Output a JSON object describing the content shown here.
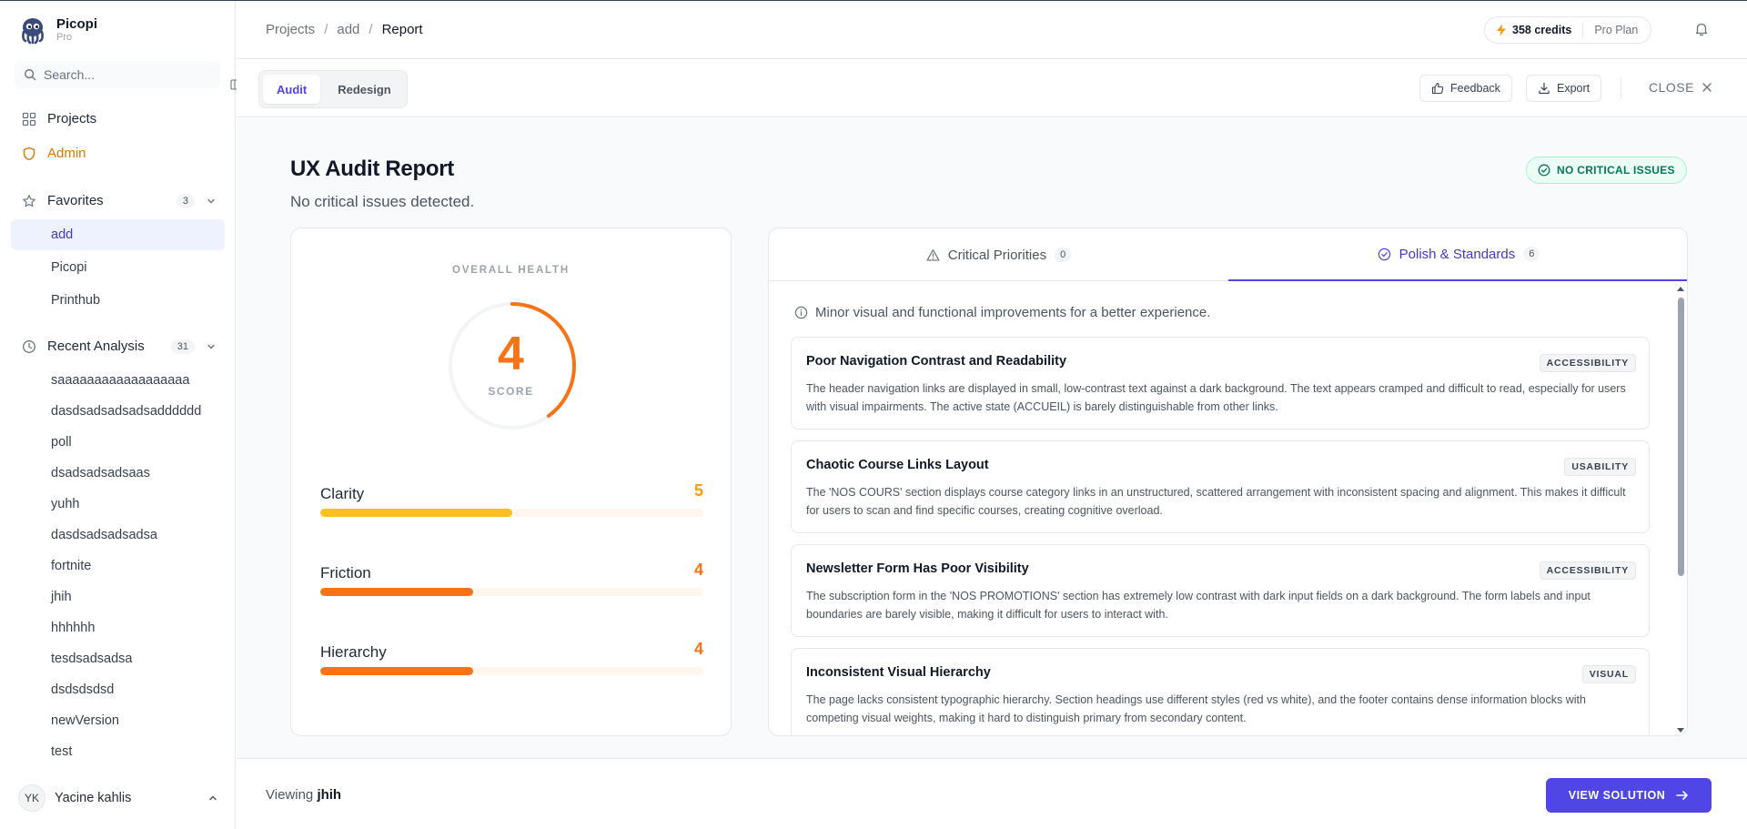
{
  "app": {
    "name": "Picopi",
    "plan": "Pro"
  },
  "sidebar": {
    "search_placeholder": "Search...",
    "nav": [
      {
        "label": "Projects"
      },
      {
        "label": "Admin"
      }
    ],
    "favorites": {
      "label": "Favorites",
      "count": "3",
      "items": [
        "add",
        "Picopi",
        "Printhub"
      ]
    },
    "recent": {
      "label": "Recent Analysis",
      "count": "31",
      "items": [
        "saaaaaaaaaaaaaaaaaa",
        "dasdsadsadsadsadddddd",
        "poll",
        "dsadsadsadsaas",
        "yuhh",
        "dasdsadsadsadsa",
        "fortnite",
        "jhih",
        "hhhhhh",
        "tesdsadsadsa",
        "dsdsdsdsd",
        "newVersion",
        "test"
      ]
    },
    "user": {
      "initials": "YK",
      "name": "Yacine kahlis"
    }
  },
  "header": {
    "breadcrumb": [
      "Projects",
      "add",
      "Report"
    ],
    "credits": "358 credits",
    "plan": "Pro Plan"
  },
  "toolbar": {
    "tabs": [
      "Audit",
      "Redesign"
    ],
    "feedback": "Feedback",
    "export": "Export",
    "close": "CLOSE"
  },
  "report": {
    "title": "UX Audit Report",
    "subtitle": "No critical issues detected.",
    "status": "NO CRITICAL ISSUES",
    "status_color": "#047857"
  },
  "health": {
    "label": "OVERALL HEALTH",
    "score": "4",
    "score_fraction": 0.4,
    "score_label": "SCORE",
    "metrics": [
      {
        "name": "Clarity",
        "value": "5",
        "fraction": 0.5,
        "color": "#fbbf24",
        "text_color": "#f59e0b"
      },
      {
        "name": "Friction",
        "value": "4",
        "fraction": 0.4,
        "color": "#f97316",
        "text_color": "#f97316"
      },
      {
        "name": "Hierarchy",
        "value": "4",
        "fraction": 0.4,
        "color": "#f97316",
        "text_color": "#f97316"
      }
    ]
  },
  "findings": {
    "tabs": [
      {
        "label": "Critical Priorities",
        "count": "0"
      },
      {
        "label": "Polish & Standards",
        "count": "6"
      }
    ],
    "info": "Minor visual and functional improvements for a better experience.",
    "items": [
      {
        "title": "Poor Navigation Contrast and Readability",
        "tag": "ACCESSIBILITY",
        "desc": "The header navigation links are displayed in small, low-contrast text against a dark background. The text appears cramped and difficult to read, especially for users with visual impairments. The active state (ACCUEIL) is barely distinguishable from other links."
      },
      {
        "title": "Chaotic Course Links Layout",
        "tag": "USABILITY",
        "desc": "The 'NOS COURS' section displays course category links in an unstructured, scattered arrangement with inconsistent spacing and alignment. This makes it difficult for users to scan and find specific courses, creating cognitive overload."
      },
      {
        "title": "Newsletter Form Has Poor Visibility",
        "tag": "ACCESSIBILITY",
        "desc": "The subscription form in the 'NOS PROMOTIONS' section has extremely low contrast with dark input fields on a dark background. The form labels and input boundaries are barely visible, making it difficult for users to interact with."
      },
      {
        "title": "Inconsistent Visual Hierarchy",
        "tag": "VISUAL",
        "desc": "The page lacks consistent typographic hierarchy. Section headings use different styles (red vs white), and the footer contains dense information blocks with competing visual weights, making it hard to distinguish primary from secondary content."
      }
    ]
  },
  "footer": {
    "viewing_prefix": "Viewing",
    "viewing_name": "jhih",
    "solution_button": "VIEW SOLUTION"
  }
}
